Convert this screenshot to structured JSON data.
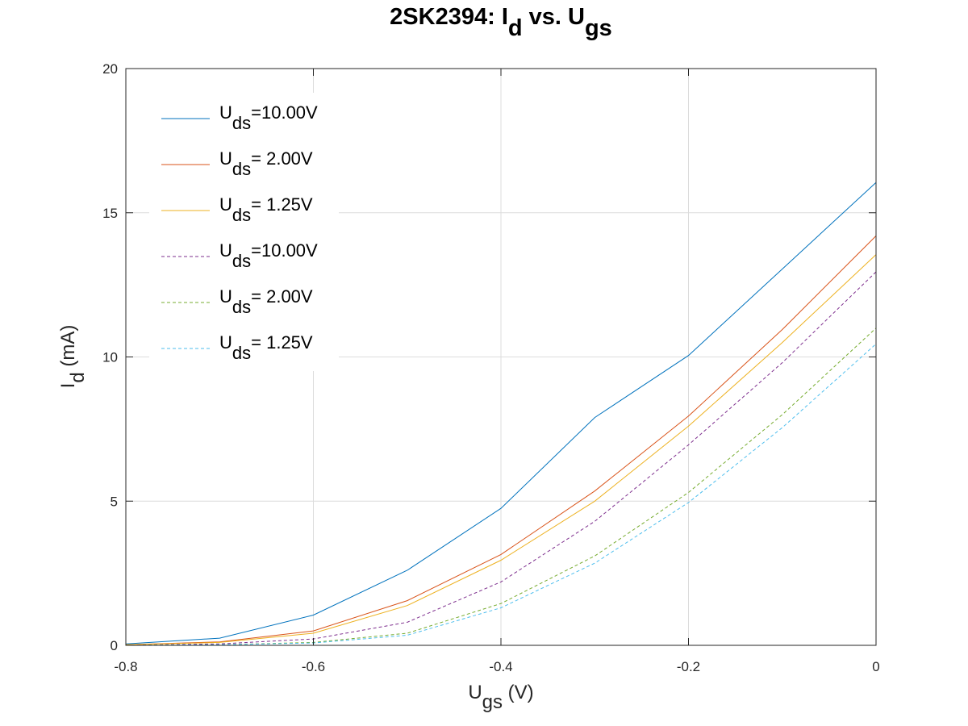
{
  "chart_data": {
    "type": "line",
    "title": {
      "main": "2SK2394: I",
      "sub1": "d",
      "mid": " vs. U",
      "sub2": "gs"
    },
    "xlabel": {
      "main": "U",
      "sub": "gs",
      "unit": " (V)"
    },
    "ylabel": {
      "main": "I",
      "sub": "d",
      "unit": " (mA)"
    },
    "xlim": [
      -0.8,
      0
    ],
    "ylim": [
      0,
      20
    ],
    "xticks": [
      -0.8,
      -0.6,
      -0.4,
      -0.2,
      0
    ],
    "xtick_labels": [
      "-0.8",
      "-0.6",
      "-0.4",
      "-0.2",
      "0"
    ],
    "yticks": [
      0,
      5,
      10,
      15,
      20
    ],
    "ytick_labels": [
      "0",
      "5",
      "10",
      "15",
      "20"
    ],
    "grid": true,
    "legend_position": "top-left",
    "x": [
      -0.8,
      -0.7,
      -0.6,
      -0.5,
      -0.4,
      -0.3,
      -0.2,
      -0.1,
      0
    ],
    "series": [
      {
        "label_main": "U",
        "label_sub": "ds",
        "label_rest": "=10.00V",
        "color": "#0072BD",
        "dashed": false,
        "values": [
          0.05,
          0.25,
          1.05,
          2.6,
          4.75,
          7.9,
          10.05,
          13.05,
          16.05
        ]
      },
      {
        "label_main": "U",
        "label_sub": "ds",
        "label_rest": "= 2.00V",
        "color": "#D95319",
        "dashed": false,
        "values": [
          0.02,
          0.12,
          0.5,
          1.55,
          3.15,
          5.35,
          7.95,
          10.95,
          14.2
        ]
      },
      {
        "label_main": "U",
        "label_sub": "ds",
        "label_rest": "= 1.25V",
        "color": "#EDB120",
        "dashed": false,
        "values": [
          0.02,
          0.1,
          0.42,
          1.38,
          2.95,
          5.0,
          7.6,
          10.5,
          13.55
        ]
      },
      {
        "label_main": "U",
        "label_sub": "ds",
        "label_rest": "=10.00V",
        "color": "#7E2F8E",
        "dashed": true,
        "values": [
          0.0,
          0.05,
          0.22,
          0.8,
          2.2,
          4.3,
          6.95,
          9.8,
          12.95
        ]
      },
      {
        "label_main": "U",
        "label_sub": "ds",
        "label_rest": "= 2.00V",
        "color": "#77AC30",
        "dashed": true,
        "values": [
          0.0,
          0.02,
          0.1,
          0.42,
          1.45,
          3.1,
          5.3,
          8.0,
          11.0
        ]
      },
      {
        "label_main": "U",
        "label_sub": "ds",
        "label_rest": "= 1.25V",
        "color": "#4DBEEE",
        "dashed": true,
        "values": [
          0.0,
          0.02,
          0.08,
          0.35,
          1.3,
          2.85,
          4.95,
          7.55,
          10.45
        ]
      }
    ]
  }
}
